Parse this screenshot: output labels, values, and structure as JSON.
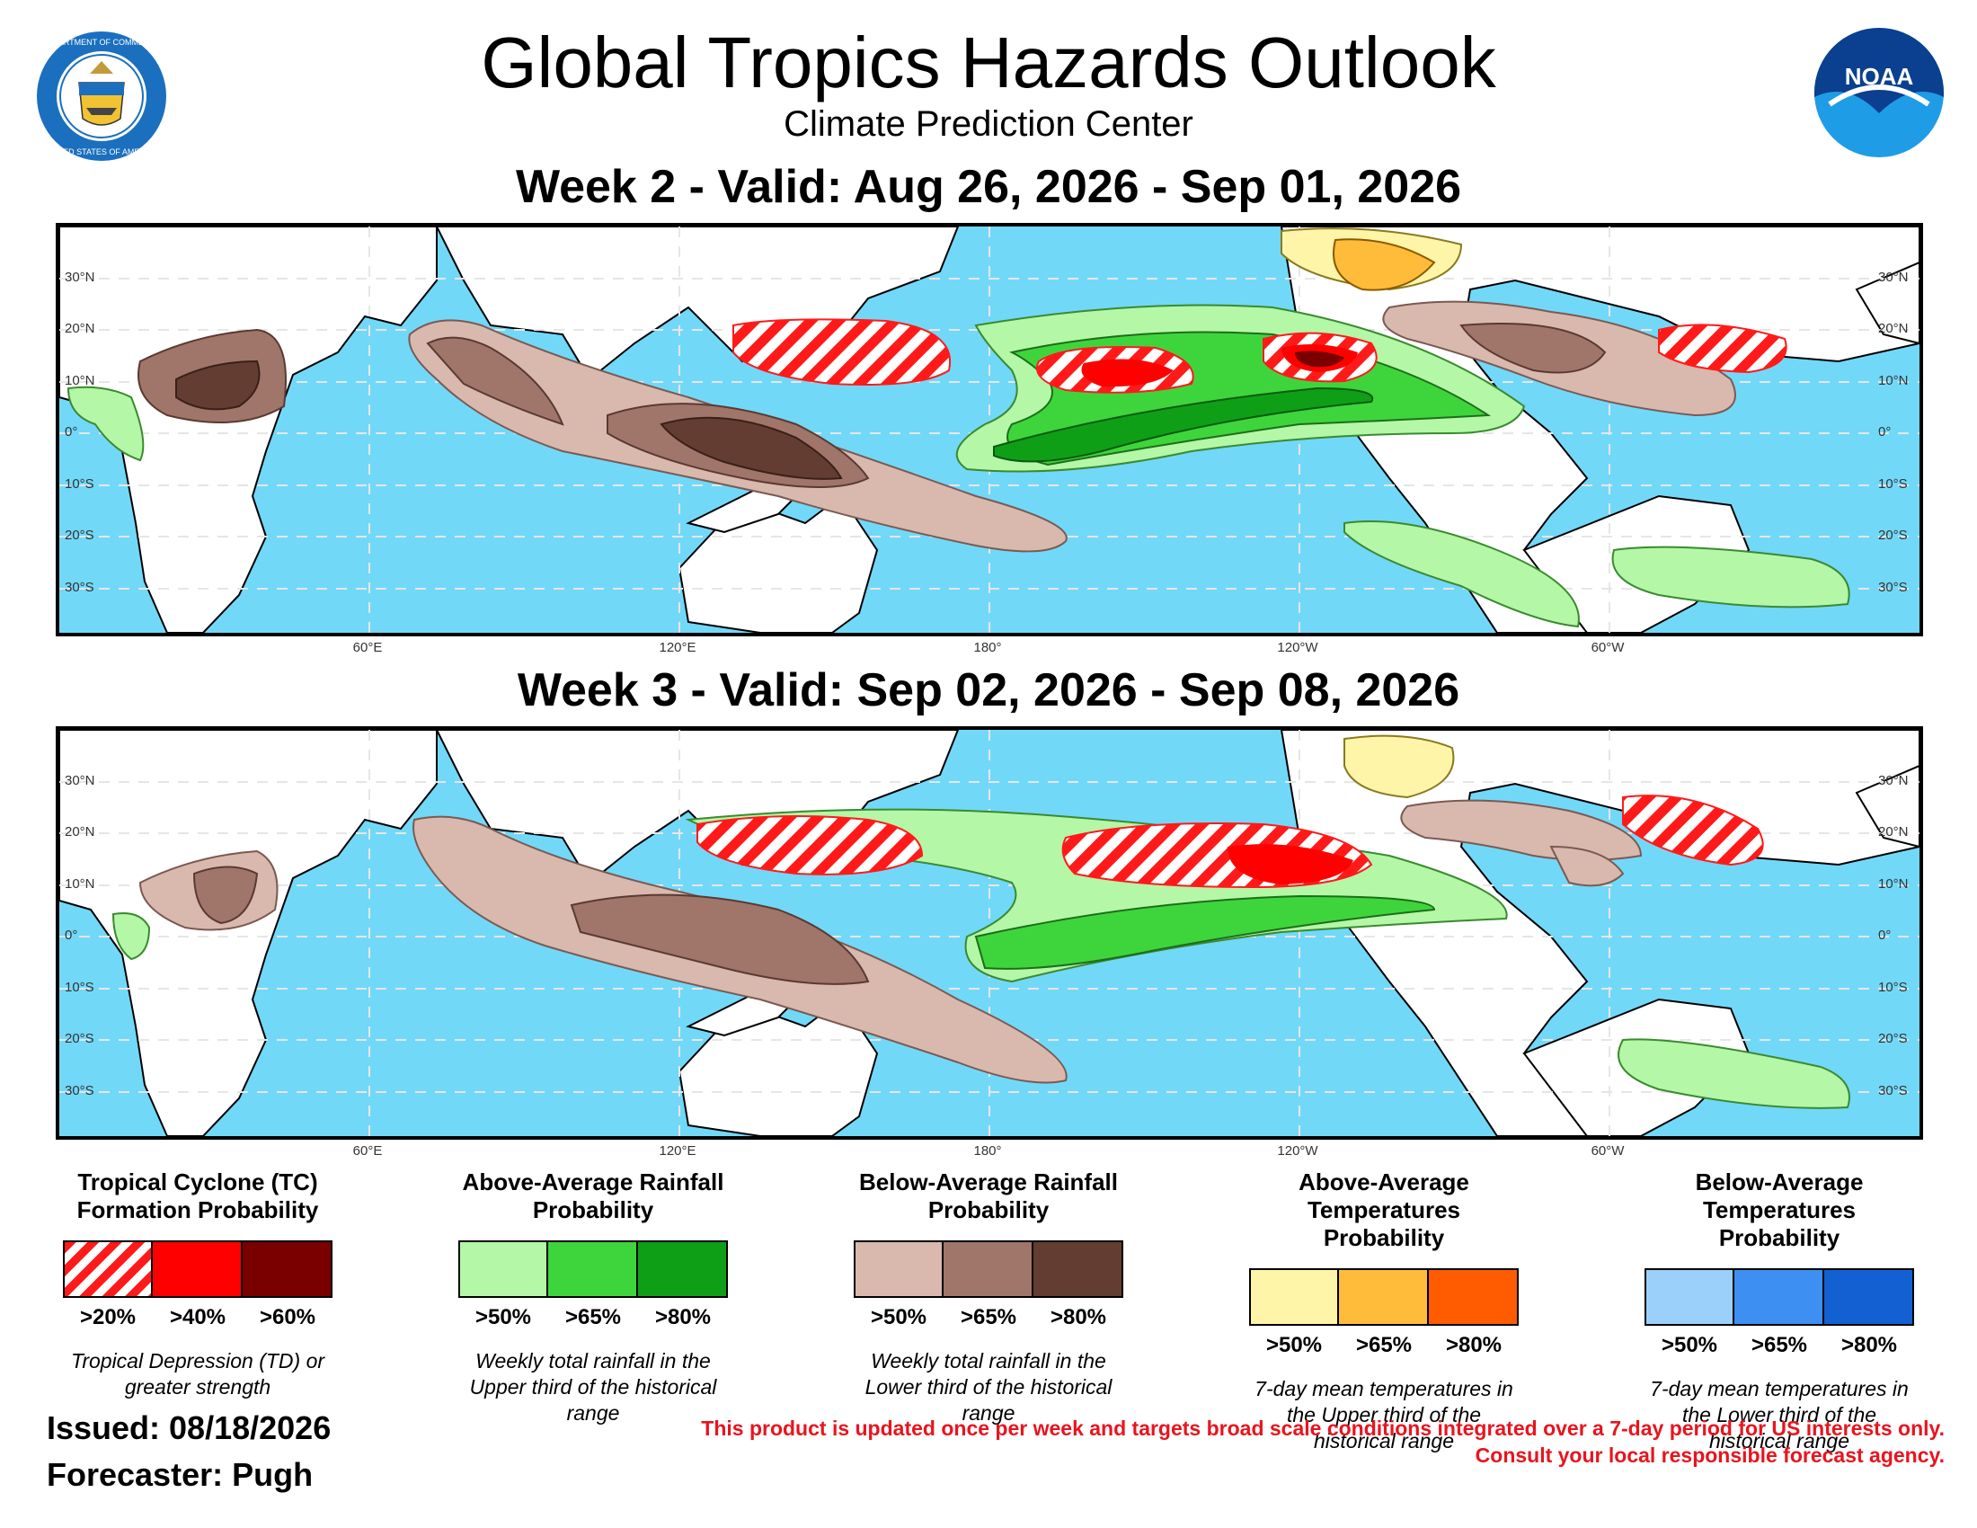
{
  "header": {
    "title": "Global Tropics Hazards Outlook",
    "subtitle": "Climate Prediction Center",
    "doc_logo_text_top": "DEPARTMENT OF COMMERCE",
    "doc_logo_text_bottom": "UNITED STATES OF AMERICA",
    "noaa_logo_text": "NOAA"
  },
  "week2": {
    "title": "Week 2 - Valid: Aug 26, 2026 - Sep 01, 2026"
  },
  "week3": {
    "title": "Week 3 - Valid: Sep 02, 2026 - Sep 08, 2026"
  },
  "axes": {
    "lat_labels": [
      "30°N",
      "20°N",
      "10°N",
      "0°",
      "10°S",
      "20°S",
      "30°S"
    ],
    "lon_labels": [
      "60°E",
      "120°E",
      "180°",
      "120°W",
      "60°W"
    ]
  },
  "colors": {
    "ocean": "#72d8f8",
    "land": "#ffffff",
    "tc_20": "#ff1a1a",
    "tc_40": "#ff0000",
    "tc_60": "#7a0000",
    "wet_50": "#b4f7a6",
    "wet_65": "#3ed53c",
    "wet_80": "#0f9f17",
    "dry_50": "#d9b8ae",
    "dry_65": "#a0756a",
    "dry_80": "#633d32",
    "warm_50": "#fff5a8",
    "warm_65": "#ffbc3a",
    "warm_80": "#ff5b00",
    "cold_50": "#9bd0fb",
    "cold_65": "#3d8ff2",
    "cold_80": "#1360d3"
  },
  "legend": [
    {
      "title": "Tropical Cyclone (TC) Formation Probability",
      "labels": [
        ">20%",
        ">40%",
        ">60%"
      ],
      "note": "Tropical Depression (TD) or greater strength"
    },
    {
      "title": "Above-Average Rainfall Probability",
      "labels": [
        ">50%",
        ">65%",
        ">80%"
      ],
      "note": "Weekly total rainfall in the Upper third of the historical range"
    },
    {
      "title": "Below-Average Rainfall Probability",
      "labels": [
        ">50%",
        ">65%",
        ">80%"
      ],
      "note": "Weekly total rainfall in the Lower third of the historical range"
    },
    {
      "title": "Above-Average Temperatures Probability",
      "labels": [
        ">50%",
        ">65%",
        ">80%"
      ],
      "note": "7-day mean temperatures in the Upper third of the historical range"
    },
    {
      "title": "Below-Average Temperatures Probability",
      "labels": [
        ">50%",
        ">65%",
        ">80%"
      ],
      "note": "7-day mean temperatures in the Lower third of the historical range"
    }
  ],
  "footer": {
    "issued": "Issued: 08/18/2026",
    "forecaster": "Forecaster: Pugh",
    "disclaimer_line1": "This product is updated once per week and targets broad scale conditions integrated over a 7-day period for US interests only.",
    "disclaimer_line2": "Consult your local responsible forecast agency."
  }
}
